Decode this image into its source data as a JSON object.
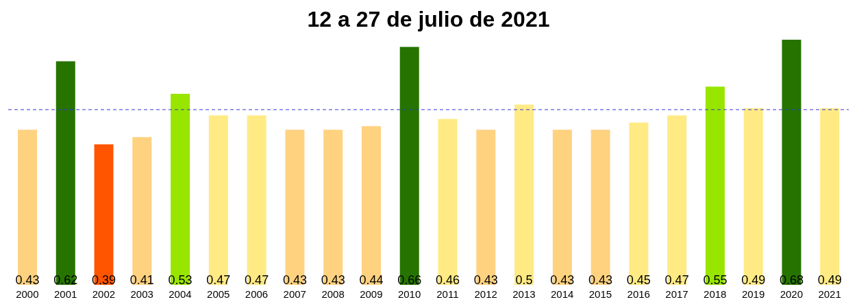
{
  "chart_data": {
    "type": "bar",
    "title": "12 a 27 de julio de 2021",
    "categories": [
      "2000",
      "2001",
      "2002",
      "2003",
      "2004",
      "2005",
      "2006",
      "2007",
      "2008",
      "2009",
      "2010",
      "2011",
      "2012",
      "2013",
      "2014",
      "2015",
      "2016",
      "2017",
      "2018",
      "2019",
      "2020",
      "2021"
    ],
    "values": [
      0.43,
      0.62,
      0.39,
      0.41,
      0.53,
      0.47,
      0.47,
      0.43,
      0.43,
      0.44,
      0.66,
      0.46,
      0.43,
      0.5,
      0.43,
      0.43,
      0.45,
      0.47,
      0.55,
      0.49,
      0.68,
      0.49
    ],
    "colors": [
      "#ffd280",
      "#267300",
      "#ff5500",
      "#ffd280",
      "#98e600",
      "#ffea84",
      "#ffea84",
      "#ffd280",
      "#ffd280",
      "#ffd280",
      "#267300",
      "#ffea84",
      "#ffd280",
      "#ffea84",
      "#ffd280",
      "#ffd280",
      "#ffea84",
      "#ffea84",
      "#98e600",
      "#ffea84",
      "#267300",
      "#ffea84"
    ],
    "ylim": [
      0,
      0.68
    ],
    "data_labels": true,
    "tick_labels": "x",
    "ref_lines": [
      {
        "axis": "y",
        "value": 0.486,
        "color": "#3333dd",
        "line_style": "dashed"
      }
    ]
  }
}
